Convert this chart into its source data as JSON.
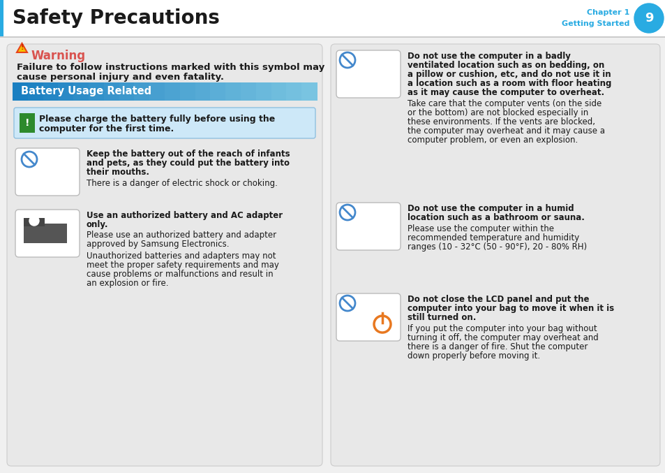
{
  "title": "Safety Precautions",
  "chapter": "Chapter 1",
  "chapter_sub": "Getting Started",
  "page_num": "9",
  "bg_color": "#ffffff",
  "cyan": "#29abe2",
  "dark_text": "#1a1a1a",
  "warning_color": "#d9534f",
  "panel_bg": "#e8e8e8",
  "panel_border": "#cccccc",
  "battery_header_text": "Battery Usage Related",
  "batt_blue_dark": "#1a7fc1",
  "batt_blue_light": "#7ec8e3",
  "warning_title": "Warning",
  "warning_desc1": "Failure to follow instructions marked with this symbol may",
  "warning_desc2": "cause personal injury and even fatality.",
  "notice_text1": "Please charge the battery fully before using the",
  "notice_text2": "computer for the first time.",
  "notice_bg": "#cde8f8",
  "notice_border": "#90c0e0",
  "notice_icon_bg": "#2d8a2d",
  "item_l1_bold1": "Keep the battery out of the reach of infants",
  "item_l1_bold2": "and pets, as they could put the battery into",
  "item_l1_bold3": "their mouths.",
  "item_l1_norm": "There is a danger of electric shock or choking.",
  "item_l2_bold1": "Use an authorized battery and AC adapter",
  "item_l2_bold2": "only.",
  "item_l2_norm1": "Please use an authorized battery and adapter",
  "item_l2_norm2": "approved by Samsung Electronics.",
  "item_l2_norm3": "Unauthorized batteries and adapters may not",
  "item_l2_norm4": "meet the proper safety requirements and may",
  "item_l2_norm5": "cause problems or malfunctions and result in",
  "item_l2_norm6": "an explosion or fire.",
  "item_r1_bold1": "Do not use the computer in a badly",
  "item_r1_bold2": "ventilated location such as on bedding, on",
  "item_r1_bold3": "a pillow or cushion, etc, and do not use it in",
  "item_r1_bold4": "a location such as a room with floor heating",
  "item_r1_bold5": "as it may cause the computer to overheat.",
  "item_r1_norm1": "Take care that the computer vents (on the side",
  "item_r1_norm2": "or the bottom) are not blocked especially in",
  "item_r1_norm3": "these environments. If the vents are blocked,",
  "item_r1_norm4": "the computer may overheat and it may cause a",
  "item_r1_norm5": "computer problem, or even an explosion.",
  "item_r2_bold1": "Do not use the computer in a humid",
  "item_r2_bold2": "location such as a bathroom or sauna.",
  "item_r2_norm1": "Please use the computer within the",
  "item_r2_norm2": "recommended temperature and humidity",
  "item_r2_norm3": "ranges (10 - 32°C (50 - 90°F), 20 - 80% RH)",
  "item_r3_bold1": "Do not close the LCD panel and put the",
  "item_r3_bold2": "computer into your bag to move it when it is",
  "item_r3_bold3": "still turned on.",
  "item_r3_norm1": "If you put the computer into your bag without",
  "item_r3_norm2": "turning it off, the computer may overheat and",
  "item_r3_norm3": "there is a danger of fire. Shut the computer",
  "item_r3_norm4": "down properly before moving it.",
  "no_symbol_color": "#4488cc",
  "power_btn_color": "#e87820"
}
